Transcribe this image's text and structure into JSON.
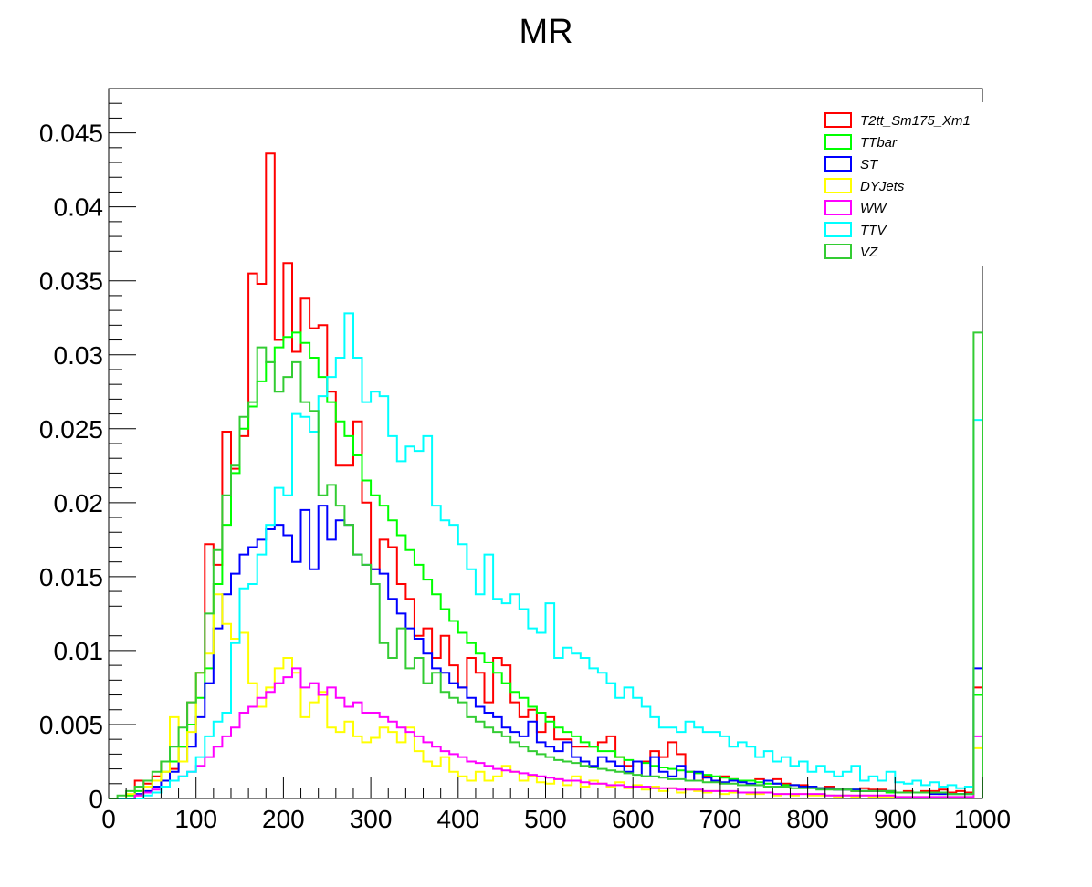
{
  "chart_data": {
    "type": "step-histogram",
    "title": "MR",
    "xlabel": "",
    "ylabel": "",
    "xlim": [
      0,
      1000
    ],
    "ylim": [
      0,
      0.048
    ],
    "x_ticks": [
      "0",
      "100",
      "200",
      "300",
      "400",
      "500",
      "600",
      "700",
      "800",
      "900",
      "1000"
    ],
    "y_ticks": [
      "0",
      "0.005",
      "0.01",
      "0.015",
      "0.02",
      "0.025",
      "0.03",
      "0.035",
      "0.04",
      "0.045"
    ],
    "bin_width": 10,
    "legend_position": "top-right",
    "series": [
      {
        "name": "T2tt_Sm175_Xm1",
        "color": "#ff0000",
        "values": [
          0,
          0,
          0,
          0.0012,
          0.001,
          0.0015,
          0.0025,
          0.002,
          0.0035,
          0.0065,
          0.0085,
          0.0172,
          0.0158,
          0.0248,
          0.0223,
          0.0245,
          0.0355,
          0.0348,
          0.0436,
          0.031,
          0.0362,
          0.0302,
          0.0338,
          0.0318,
          0.032,
          0.0275,
          0.0225,
          0.0225,
          0.0255,
          0.02,
          0.0155,
          0.0175,
          0.017,
          0.0145,
          0.0135,
          0.011,
          0.0115,
          0.0095,
          0.011,
          0.009,
          0.0075,
          0.0095,
          0.0085,
          0.0065,
          0.0095,
          0.009,
          0.0065,
          0.0055,
          0.006,
          0.0045,
          0.0055,
          0.004,
          0.004,
          0.0035,
          0.0035,
          0.0035,
          0.0038,
          0.0042,
          0.0028,
          0.0022,
          0.0025,
          0.0025,
          0.0032,
          0.0028,
          0.0038,
          0.003,
          0.0018,
          0.0012,
          0.0015,
          0.0012,
          0.0015,
          0.0013,
          0.0012,
          0.0012,
          0.0013,
          0.0012,
          0.0013,
          0.001,
          0.0009,
          0.0009,
          0.0008,
          0.0007,
          0.0008,
          0.0006,
          0.0006,
          0.0005,
          0.0007,
          0.0006,
          0.0006,
          0.0005,
          0.0004,
          0.0005,
          0.0004,
          0.0005,
          0.0005,
          0.0006,
          0.0004,
          0.0005,
          0.0004,
          0.0075
        ]
      },
      {
        "name": "TTbar",
        "color": "#00ff00",
        "values": [
          0,
          0,
          0.0002,
          0.0005,
          0.0008,
          0.0012,
          0.0018,
          0.0025,
          0.0035,
          0.005,
          0.0068,
          0.0088,
          0.0145,
          0.0185,
          0.022,
          0.025,
          0.0265,
          0.0282,
          0.0295,
          0.0305,
          0.0312,
          0.0315,
          0.0308,
          0.0298,
          0.0285,
          0.0268,
          0.0255,
          0.0245,
          0.0232,
          0.0215,
          0.0205,
          0.0198,
          0.0188,
          0.0178,
          0.0168,
          0.0158,
          0.0148,
          0.0138,
          0.0128,
          0.012,
          0.0112,
          0.0105,
          0.0098,
          0.0092,
          0.0085,
          0.0078,
          0.0072,
          0.0068,
          0.0062,
          0.0058,
          0.0052,
          0.0048,
          0.0045,
          0.0042,
          0.0038,
          0.0035,
          0.0032,
          0.0032,
          0.0028,
          0.0026,
          0.0025,
          0.0024,
          0.0022,
          0.0021,
          0.002,
          0.0019,
          0.0018,
          0.0017,
          0.0016,
          0.0015,
          0.0014,
          0.0013,
          0.0012,
          0.0012,
          0.0011,
          0.001,
          0.001,
          0.0009,
          0.0009,
          0.0008,
          0.0008,
          0.0007,
          0.0007,
          0.0006,
          0.0006,
          0.0006,
          0.0005,
          0.0005,
          0.0005,
          0.0004,
          0.0004,
          0.0004,
          0.0004,
          0.0004,
          0.0004,
          0.0003,
          0.0003,
          0.0003,
          0.0003,
          0.007
        ]
      },
      {
        "name": "ST",
        "color": "#0000ff",
        "values": [
          0,
          0,
          0,
          0.0003,
          0.0005,
          0.0008,
          0.0012,
          0.0018,
          0.0025,
          0.0035,
          0.0055,
          0.0078,
          0.0115,
          0.0138,
          0.0152,
          0.0165,
          0.017,
          0.0175,
          0.0182,
          0.0185,
          0.0178,
          0.016,
          0.0195,
          0.0155,
          0.0198,
          0.0175,
          0.0188,
          0.0185,
          0.0165,
          0.0158,
          0.0155,
          0.0152,
          0.0135,
          0.0125,
          0.0115,
          0.0108,
          0.0098,
          0.0088,
          0.0085,
          0.0078,
          0.0075,
          0.0068,
          0.0062,
          0.0058,
          0.0055,
          0.0048,
          0.0045,
          0.0042,
          0.0052,
          0.0038,
          0.0035,
          0.0032,
          0.0038,
          0.0028,
          0.0025,
          0.0022,
          0.0028,
          0.0025,
          0.0022,
          0.0018,
          0.0025,
          0.0015,
          0.0028,
          0.0018,
          0.0015,
          0.0022,
          0.0012,
          0.0018,
          0.0014,
          0.0012,
          0.0011,
          0.0012,
          0.0011,
          0.001,
          0.0009,
          0.0012,
          0.001,
          0.0008,
          0.0009,
          0.0008,
          0.0008,
          0.0007,
          0.0007,
          0.0006,
          0.0006,
          0.0006,
          0.0005,
          0.0005,
          0.0005,
          0.0005,
          0.0004,
          0.0004,
          0.0004,
          0.0004,
          0.0003,
          0.0003,
          0.0003,
          0.0003,
          0.0003,
          0.0088
        ]
      },
      {
        "name": "DYJets",
        "color": "#ffff00",
        "values": [
          0,
          0,
          0.0003,
          0.0002,
          0.0008,
          0.0012,
          0.0018,
          0.0055,
          0.0025,
          0.0045,
          0.0085,
          0.0098,
          0.0138,
          0.0118,
          0.0108,
          0.0112,
          0.0078,
          0.0062,
          0.0075,
          0.0088,
          0.0095,
          0.0085,
          0.0055,
          0.0065,
          0.0072,
          0.0048,
          0.0045,
          0.0052,
          0.0042,
          0.0038,
          0.0041,
          0.0048,
          0.0045,
          0.0038,
          0.0048,
          0.0032,
          0.0025,
          0.0022,
          0.0028,
          0.0018,
          0.0015,
          0.0012,
          0.0018,
          0.0012,
          0.0015,
          0.0022,
          0.0018,
          0.0012,
          0.0015,
          0.0011,
          0.001,
          0.0013,
          0.0009,
          0.0015,
          0.0008,
          0.0012,
          0.001,
          0.0008,
          0.0011,
          0.0007,
          0.0009,
          0.0006,
          0.0008,
          0.0005,
          0.0007,
          0.0004,
          0.0006,
          0.0005,
          0.0004,
          0.0005,
          0.0003,
          0.0004,
          0.0004,
          0.0003,
          0.0003,
          0.0004,
          0.0002,
          0.0003,
          0.0002,
          0.0003,
          0.0002,
          0.0002,
          0.0002,
          0.0001,
          0.0002,
          0.0001,
          0.0002,
          0.0001,
          0.0001,
          0.0001,
          0.0001,
          0.0001,
          0.0001,
          0.0001,
          0.0001,
          0.0001,
          0.0001,
          0.0001,
          0.0001,
          0.0034
        ]
      },
      {
        "name": "WW",
        "color": "#ff00ff",
        "values": [
          0,
          0,
          0,
          0.0002,
          0.0004,
          0.0006,
          0.0008,
          0.0012,
          0.0015,
          0.0018,
          0.0022,
          0.0028,
          0.0035,
          0.0042,
          0.0048,
          0.0058,
          0.0062,
          0.0068,
          0.0072,
          0.0078,
          0.0082,
          0.0088,
          0.0075,
          0.0078,
          0.007,
          0.0075,
          0.0068,
          0.0062,
          0.0065,
          0.0058,
          0.0058,
          0.0055,
          0.0052,
          0.0048,
          0.0045,
          0.0042,
          0.0038,
          0.0035,
          0.0032,
          0.003,
          0.0028,
          0.0025,
          0.0024,
          0.0022,
          0.002,
          0.0019,
          0.0018,
          0.0017,
          0.0016,
          0.0015,
          0.0014,
          0.0013,
          0.0012,
          0.0012,
          0.0011,
          0.001,
          0.001,
          0.0009,
          0.0009,
          0.0008,
          0.0008,
          0.0008,
          0.0007,
          0.0007,
          0.0007,
          0.0006,
          0.0006,
          0.0006,
          0.0005,
          0.0005,
          0.0005,
          0.0005,
          0.0004,
          0.0004,
          0.0004,
          0.0004,
          0.0003,
          0.0003,
          0.0003,
          0.0003,
          0.0003,
          0.0003,
          0.0002,
          0.0002,
          0.0002,
          0.0002,
          0.0002,
          0.0002,
          0.0002,
          0.0002,
          0.0001,
          0.0001,
          0.0001,
          0.0001,
          0.0001,
          0.0001,
          0.0001,
          0.0001,
          0.0001,
          0.0042
        ]
      },
      {
        "name": "TTV",
        "color": "#00ffff",
        "values": [
          0,
          0,
          0,
          0,
          0.0002,
          0.0004,
          0.0008,
          0.0012,
          0.0015,
          0.0018,
          0.0028,
          0.0042,
          0.0052,
          0.0058,
          0.0105,
          0.0142,
          0.0145,
          0.0165,
          0.0185,
          0.021,
          0.0205,
          0.026,
          0.0258,
          0.0248,
          0.0272,
          0.0285,
          0.0298,
          0.0328,
          0.0298,
          0.0268,
          0.0275,
          0.0272,
          0.0245,
          0.0228,
          0.0238,
          0.0235,
          0.0245,
          0.0198,
          0.0188,
          0.0185,
          0.0172,
          0.0155,
          0.0138,
          0.0165,
          0.0135,
          0.0132,
          0.0138,
          0.0128,
          0.0115,
          0.0112,
          0.0132,
          0.0095,
          0.0102,
          0.0098,
          0.0095,
          0.0088,
          0.0085,
          0.0078,
          0.0068,
          0.0075,
          0.0068,
          0.0062,
          0.0055,
          0.0048,
          0.0048,
          0.0045,
          0.0052,
          0.0048,
          0.0045,
          0.0045,
          0.0042,
          0.0035,
          0.0038,
          0.0035,
          0.0028,
          0.0032,
          0.0025,
          0.0028,
          0.0022,
          0.0025,
          0.0018,
          0.0022,
          0.0018,
          0.0015,
          0.0018,
          0.0022,
          0.0012,
          0.0015,
          0.0012,
          0.0018,
          0.0011,
          0.001,
          0.0012,
          0.0009,
          0.0011,
          0.0008,
          0.0009,
          0.0007,
          0.0008,
          0.0256
        ]
      },
      {
        "name": "VZ",
        "color": "#33cc33",
        "values": [
          0,
          0.0002,
          0.0005,
          0.0008,
          0.0012,
          0.0018,
          0.0025,
          0.0035,
          0.0048,
          0.0065,
          0.0085,
          0.0125,
          0.0168,
          0.0205,
          0.0225,
          0.0258,
          0.0268,
          0.0305,
          0.0295,
          0.0275,
          0.0285,
          0.0295,
          0.0268,
          0.0262,
          0.0205,
          0.0212,
          0.0198,
          0.0185,
          0.0165,
          0.0158,
          0.0145,
          0.0105,
          0.0095,
          0.0115,
          0.0088,
          0.0095,
          0.0078,
          0.0085,
          0.0072,
          0.0068,
          0.0065,
          0.0055,
          0.0052,
          0.0048,
          0.0045,
          0.0042,
          0.0038,
          0.0035,
          0.0032,
          0.003,
          0.0028,
          0.0026,
          0.0025,
          0.0024,
          0.0022,
          0.0021,
          0.002,
          0.0019,
          0.0018,
          0.0017,
          0.0016,
          0.0015,
          0.0015,
          0.0014,
          0.0013,
          0.0013,
          0.0012,
          0.0012,
          0.0011,
          0.0011,
          0.001,
          0.001,
          0.0009,
          0.0009,
          0.0009,
          0.0008,
          0.0008,
          0.0008,
          0.0007,
          0.0007,
          0.0007,
          0.0006,
          0.0006,
          0.0006,
          0.0006,
          0.0005,
          0.0005,
          0.0005,
          0.0005,
          0.0005,
          0.0004,
          0.0004,
          0.0004,
          0.0004,
          0.0004,
          0.0004,
          0.0003,
          0.0003,
          0.0003,
          0.0315
        ]
      }
    ]
  }
}
